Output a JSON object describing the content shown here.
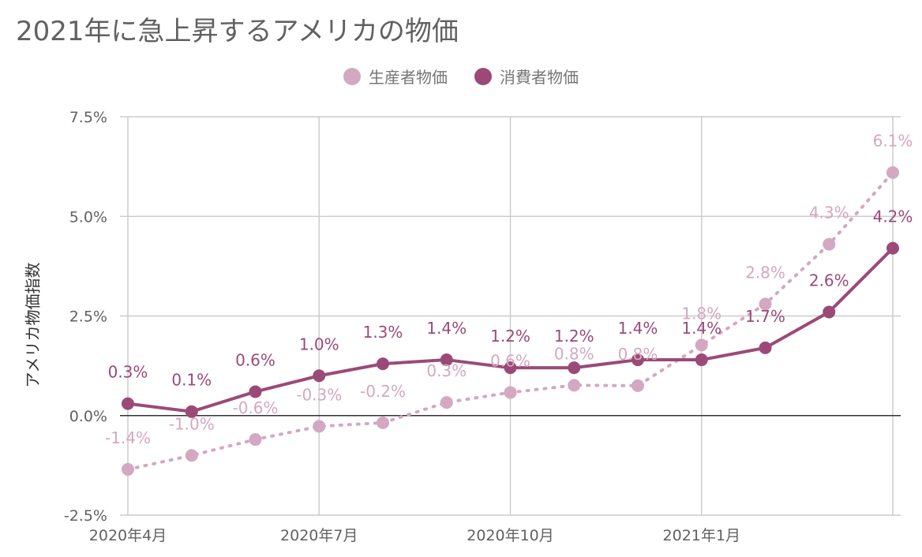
{
  "colors": {
    "producer": "#d4a8c0",
    "consumer": "#9b4a78"
  },
  "chart_data": {
    "type": "line",
    "title": "2021年に急上昇するアメリカの物価",
    "xlabel": "",
    "ylabel": "アメリカ物価指数",
    "x": [
      "2020-04",
      "2020-05",
      "2020-06",
      "2020-07",
      "2020-08",
      "2020-09",
      "2020-10",
      "2020-11",
      "2020-12",
      "2021-01",
      "2021-02",
      "2021-03",
      "2021-04"
    ],
    "xtick_labels": [
      "2020年4月",
      "",
      "",
      "2020年7月",
      "",
      "",
      "2020年10月",
      "",
      "",
      "2021年1月",
      "",
      "",
      ""
    ],
    "ytick_labels": [
      "-2.5%",
      "0.0%",
      "2.5%",
      "5.0%",
      "7.5%"
    ],
    "ylim": [
      -2.5,
      7.5
    ],
    "legend_position": "top",
    "grid": true,
    "series": [
      {
        "name": "生産者物価",
        "style": "dotted",
        "values": [
          -1.35,
          -1.0,
          -0.6,
          -0.27,
          -0.18,
          0.33,
          0.58,
          0.76,
          0.75,
          1.77,
          2.8,
          4.3,
          6.1
        ],
        "labels": [
          "-1.4%",
          "-1.0%",
          "-0.6%",
          "-0.3%",
          "-0.2%",
          "0.3%",
          "0.6%",
          "0.8%",
          "0.8%",
          "1.8%",
          "2.8%",
          "4.3%",
          "6.1%"
        ]
      },
      {
        "name": "消費者物価",
        "style": "solid",
        "values": [
          0.3,
          0.1,
          0.6,
          1.0,
          1.3,
          1.4,
          1.2,
          1.2,
          1.4,
          1.4,
          1.7,
          2.6,
          4.2
        ],
        "labels": [
          "0.3%",
          "0.1%",
          "0.6%",
          "1.0%",
          "1.3%",
          "1.4%",
          "1.2%",
          "1.2%",
          "1.4%",
          "1.4%",
          "1.7%",
          "2.6%",
          "4.2%"
        ]
      }
    ]
  }
}
